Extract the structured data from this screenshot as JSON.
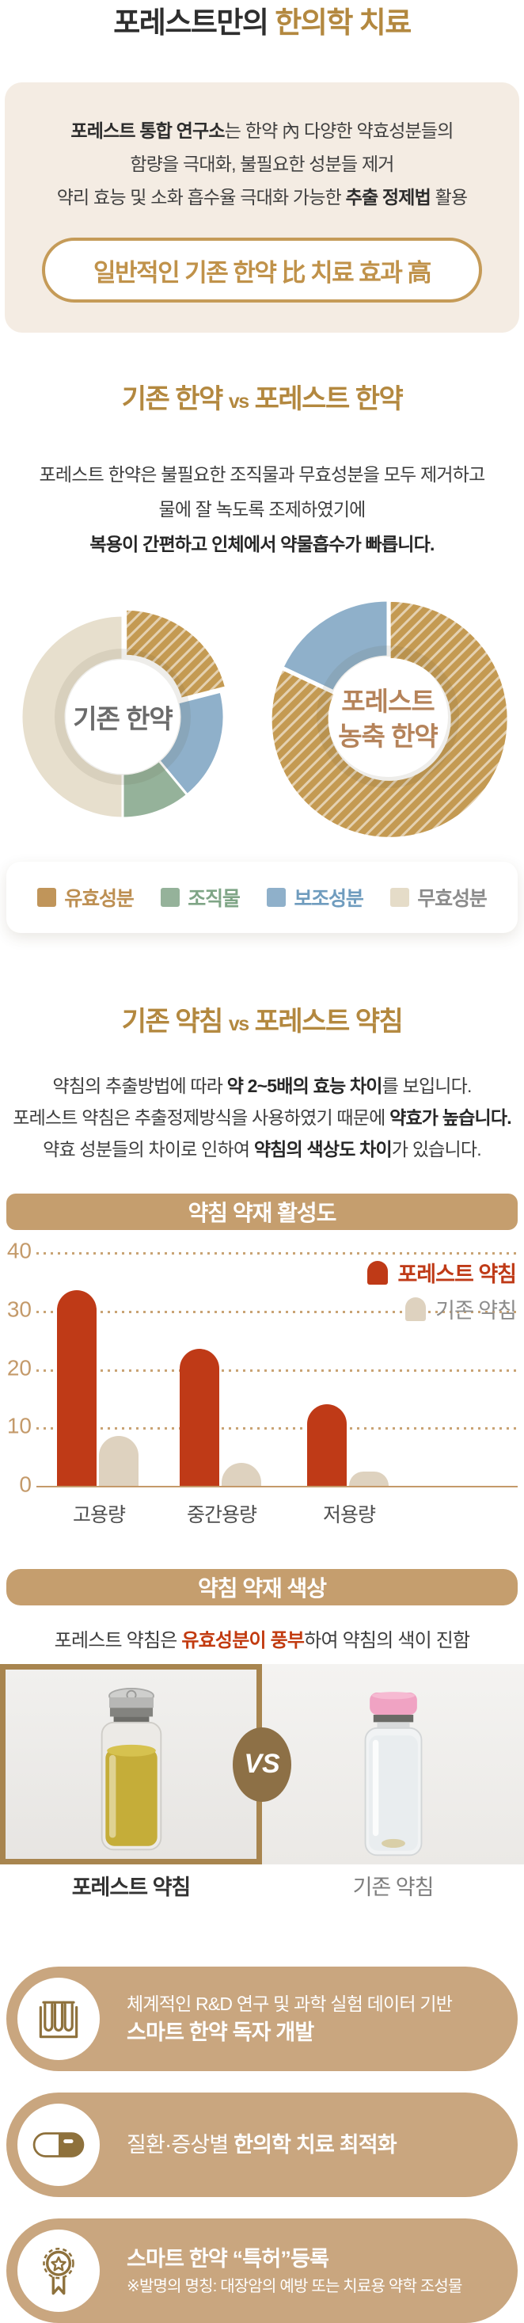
{
  "title": {
    "prefix": "포레스트만의 ",
    "accent": "한의학 치료"
  },
  "theme": {
    "accent_gold": "#b3883f",
    "badge_gold": "#c0924a",
    "header_tan": "#c59e6e",
    "card_tan": "#c9a67f",
    "bar_red": "#bf3a17",
    "bar_beige": "#ded2bf",
    "highlight_red": "#c23a0f",
    "frame_gold": "#a8854f"
  },
  "intro": {
    "lines": [
      [
        {
          "text": "포레스트 통합 연구소",
          "bold": true
        },
        {
          "text": "는 한약 內 다양한 약효성분들의"
        }
      ],
      [
        {
          "text": "함량을 극대화, 불필요한 성분들 제거"
        }
      ],
      [
        {
          "text": "약리 효능 및 소화 흡수율 극대화 가능한 "
        },
        {
          "text": "추출 정제법",
          "bold": true
        },
        {
          "text": " 활용"
        }
      ]
    ],
    "badge": "일반적인 기존 한약 比 치료 효과 高"
  },
  "herb_section": {
    "heading": {
      "left": "기존 한약",
      "vs": "vs",
      "right": "포레스트 한약"
    },
    "paragraph": [
      [
        {
          "text": "포레스트 한약은 불필요한 조직물과 무효성분을 모두 제거하고"
        }
      ],
      [
        {
          "text": "물에 잘 녹도록 조제하였기에"
        }
      ],
      [
        {
          "text": "복용이 간편하고 인체에서 약물흡수가 빠릅니다.",
          "bold": true
        }
      ]
    ],
    "legend": [
      {
        "label": "유효성분",
        "swatch": "#c0955a",
        "text_color": "#bd8f52"
      },
      {
        "label": "조직물",
        "swatch": "#95b29a",
        "text_color": "#7fa586"
      },
      {
        "label": "보조성분",
        "swatch": "#8fb0ca",
        "text_color": "#6f9cbe"
      },
      {
        "label": "무효성분",
        "swatch": "#e5dcc8",
        "text_color": "#8c8c8c"
      }
    ]
  },
  "acu_section": {
    "heading": {
      "left": "기존 약침",
      "vs": "vs",
      "right": "포레스트 약침"
    },
    "paragraph": [
      [
        {
          "text": "약침의 추출방법에 따라 "
        },
        {
          "text": "약 2~5배의 효능 차이",
          "bold": true
        },
        {
          "text": "를 보입니다."
        }
      ],
      [
        {
          "text": "포레스트 약침은 추출정제방식을 사용하였기 때문에 "
        },
        {
          "text": "약효가 높습니다.",
          "bold": true
        }
      ],
      [
        {
          "text": "약효 성분들의 차이로 인하여 "
        },
        {
          "text": "약침의 색상도 차이",
          "bold": true
        },
        {
          "text": "가 있습니다."
        }
      ]
    ],
    "chart_header": "약침 약재 활성도",
    "color_header": "약침 약재 색상",
    "color_caption": [
      {
        "text": "포레스트 약침은 "
      },
      {
        "text": "유효성분이 풍부",
        "bold": true,
        "color": "#c23a0f"
      },
      {
        "text": "하여 약침의 색이 진함"
      }
    ],
    "vs_label": "VS",
    "photo_labels": {
      "left": "포레스트 약침",
      "right": "기존 약침"
    }
  },
  "features": [
    {
      "icon": "test-tubes",
      "lines": [
        [
          {
            "text": "체계적인 R&D 연구 및 과학 실험 데이터 기반"
          }
        ],
        [
          {
            "text": "스마트 한약 독자 개발",
            "bold": true
          }
        ]
      ]
    },
    {
      "icon": "capsule",
      "lines": [
        [
          {
            "text": "질환·증상별 "
          },
          {
            "text": "한의학 치료 최적화",
            "bold": true
          }
        ]
      ]
    },
    {
      "icon": "medal",
      "lines": [
        [
          {
            "text": "스마트 한약 “특허”등록",
            "bold": true
          }
        ],
        [
          {
            "text": "※발명의 명칭: 대장암의 예방 또는 치료용 약학 조성물"
          }
        ]
      ]
    }
  ],
  "chart_data": [
    {
      "type": "pie",
      "subtype": "donut",
      "title": "기존 한약",
      "center_label": {
        "lines": [
          "기존 한약"
        ],
        "color": "#6b6b6b"
      },
      "unit": "percent",
      "slices": [
        {
          "label": "유효성분",
          "value": 21,
          "color": "#c49a52",
          "hatch": true
        },
        {
          "label": "보조성분",
          "value": 18,
          "color": "#8fb0ca"
        },
        {
          "label": "조직물",
          "value": 11,
          "color": "#95b29a"
        },
        {
          "label": "무효성분",
          "value": 50,
          "color": "#e7dfcd"
        }
      ]
    },
    {
      "type": "pie",
      "subtype": "donut",
      "title": "포레스트 농축 한약",
      "center_label": {
        "lines": [
          "포레스트",
          "농축 한약"
        ],
        "color": "#b5835a"
      },
      "unit": "percent",
      "slices": [
        {
          "label": "유효성분",
          "value": 82,
          "color": "#c49a52",
          "hatch": true
        },
        {
          "label": "보조성분",
          "value": 18,
          "color": "#8fb0ca"
        }
      ]
    },
    {
      "type": "bar",
      "title": "약침 약재 활성도",
      "categories": [
        "고용량",
        "중간용량",
        "저용량"
      ],
      "series": [
        {
          "name": "포레스트 약침",
          "color": "#bf3a17",
          "values": [
            33.5,
            23.5,
            14
          ]
        },
        {
          "name": "기존 약침",
          "color": "#ded2bf",
          "values": [
            8.5,
            4,
            2.5
          ]
        }
      ],
      "ylim": [
        0,
        40
      ],
      "yticks": [
        40,
        30,
        20,
        10,
        0
      ],
      "grid": "dotted",
      "legend_position": "top-right",
      "legend_text_colors": [
        "#bf3a17",
        "#8c8c8c"
      ]
    }
  ]
}
